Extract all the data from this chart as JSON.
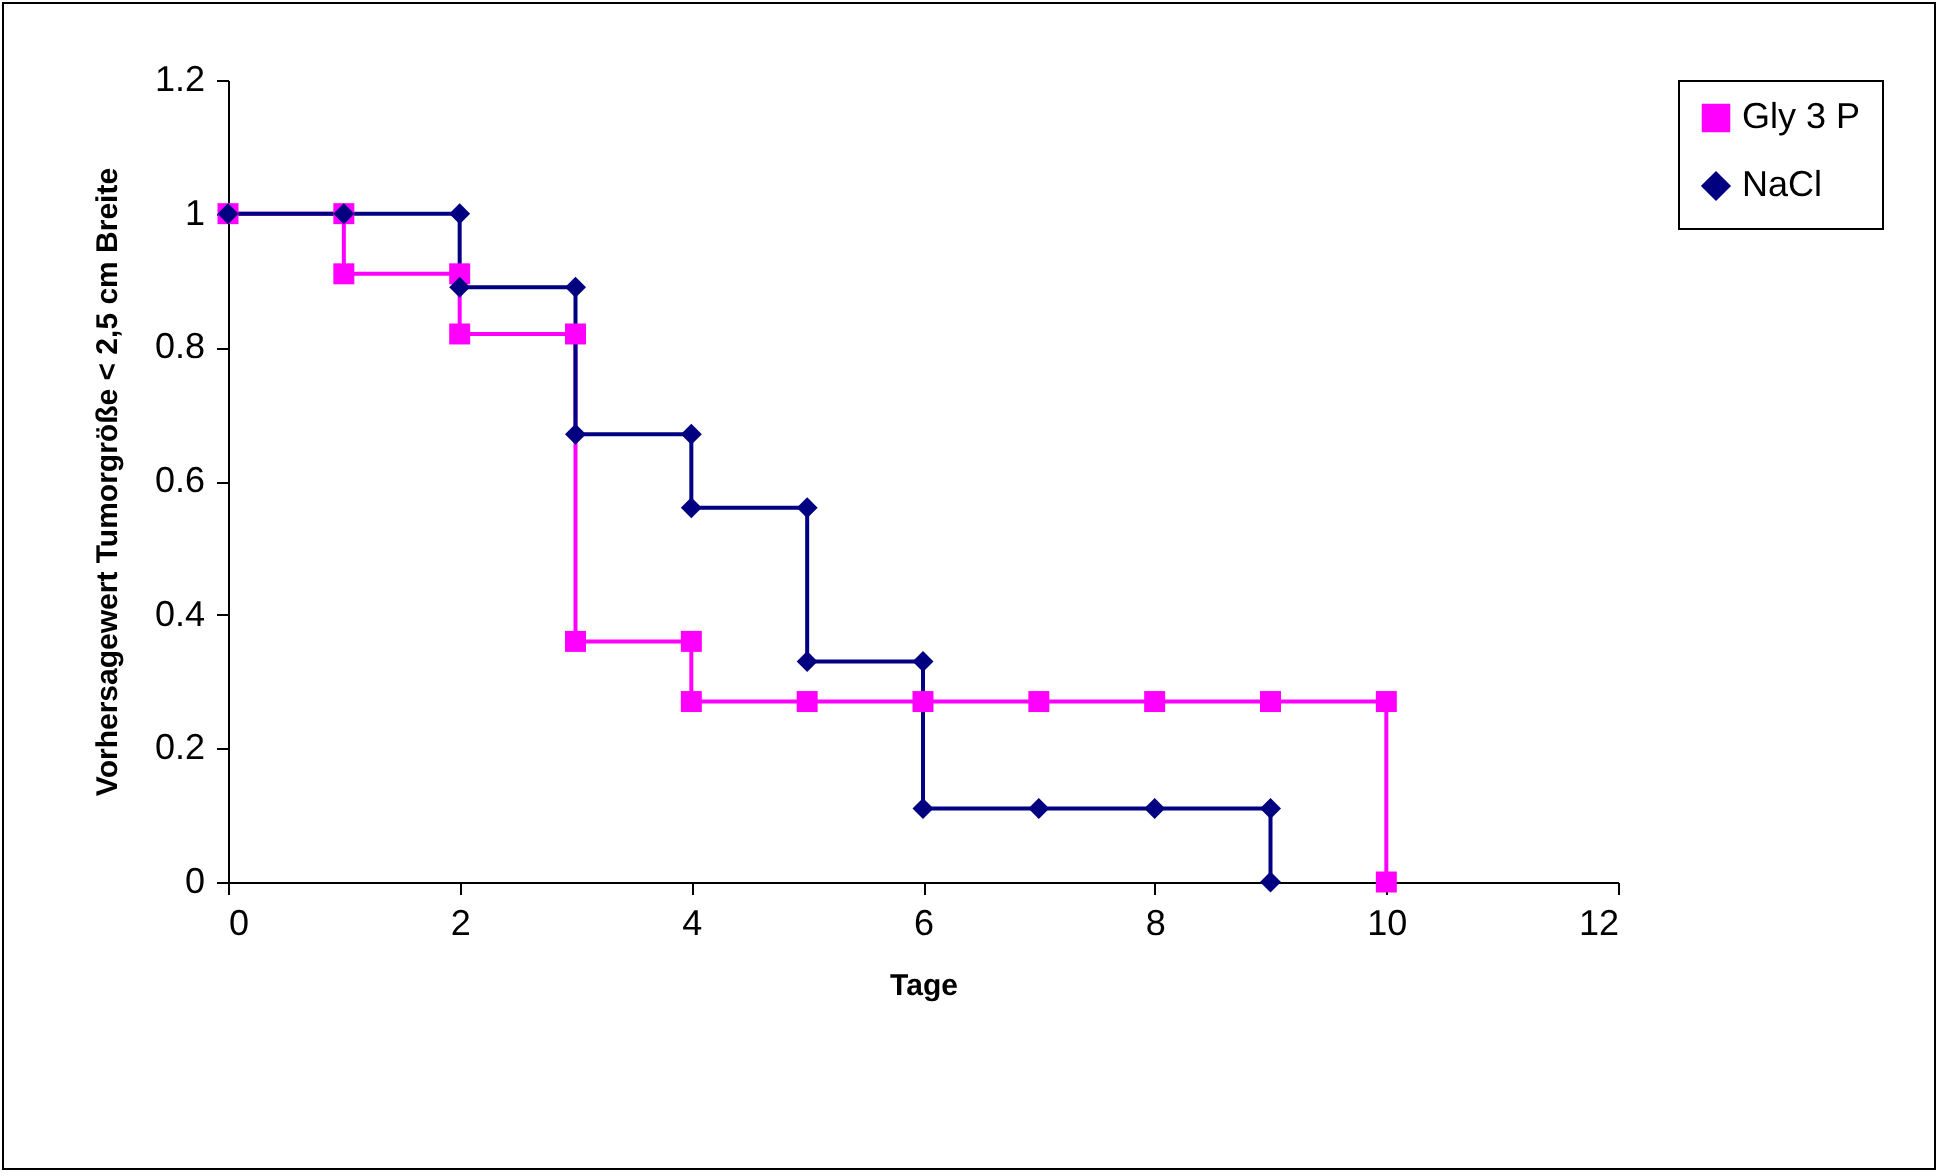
{
  "chart_data": {
    "type": "line",
    "xlabel": "Tage",
    "ylabel": "Vorhersagewert Tumorgröße < 2,5 cm Breite",
    "xlim": [
      0,
      12
    ],
    "xticks": [
      0,
      2,
      4,
      6,
      8,
      10,
      12
    ],
    "ylim": [
      0,
      1.2
    ],
    "yticks": [
      0,
      0.2,
      0.4,
      0.6,
      0.8,
      1,
      1.2
    ],
    "grid": false,
    "legend": "right",
    "series": [
      {
        "name": "Gly 3 P",
        "color": "#ff00ff",
        "marker": "square",
        "x": [
          0,
          1,
          1,
          2,
          2,
          3,
          3,
          4,
          4,
          5,
          6,
          7,
          8,
          9,
          10,
          10
        ],
        "values": [
          1,
          1,
          0.91,
          0.91,
          0.82,
          0.82,
          0.36,
          0.36,
          0.27,
          0.27,
          0.27,
          0.27,
          0.27,
          0.27,
          0.27,
          0
        ]
      },
      {
        "name": "NaCl",
        "color": "#000080",
        "marker": "diamond",
        "x": [
          0,
          1,
          2,
          2,
          3,
          3,
          4,
          4,
          5,
          5,
          6,
          6,
          7,
          8,
          9,
          9
        ],
        "values": [
          1,
          1,
          1,
          0.89,
          0.89,
          0.67,
          0.67,
          0.56,
          0.56,
          0.33,
          0.33,
          0.11,
          0.11,
          0.11,
          0.11,
          0
        ]
      }
    ]
  }
}
